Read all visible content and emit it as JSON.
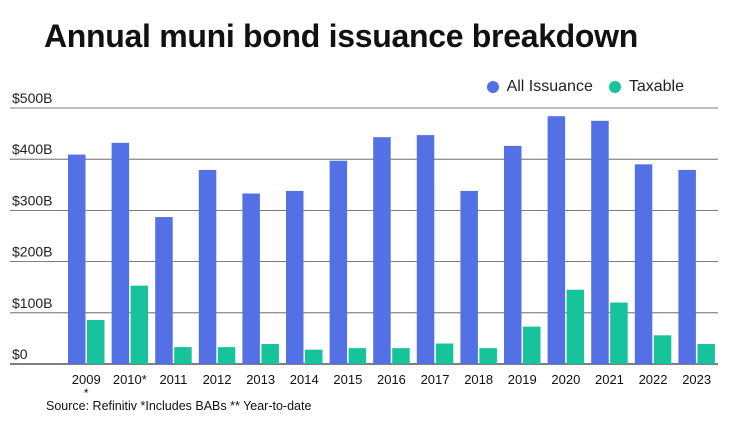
{
  "title": "Annual muni bond issuance breakdown",
  "source": "Source: Refinitiv *Includes BABs ** Year-to-date",
  "colors": {
    "all_issuance": "#5470e5",
    "taxable": "#17c39b",
    "grid": "#555555"
  },
  "chart_data": {
    "type": "bar",
    "categories": [
      "2009",
      "2010*",
      "2011",
      "2012",
      "2013",
      "2014",
      "2015",
      "2016",
      "2017",
      "2018",
      "2019",
      "2020",
      "2021",
      "2022",
      "2023"
    ],
    "category_notes": [
      "*",
      "",
      "",
      "",
      "",
      "",
      "",
      "",
      "",
      "",
      "",
      "",
      "",
      "",
      ""
    ],
    "series": [
      {
        "name": "All Issuance",
        "values": [
          409,
          432,
          287,
          379,
          333,
          338,
          397,
          443,
          447,
          338,
          426,
          484,
          475,
          390,
          379
        ]
      },
      {
        "name": "Taxable",
        "values": [
          86,
          153,
          33,
          33,
          39,
          28,
          31,
          31,
          40,
          31,
          73,
          145,
          120,
          56,
          39
        ]
      }
    ],
    "ylim": [
      0,
      500
    ],
    "yticks": [
      0,
      100,
      200,
      300,
      400,
      500
    ],
    "ytick_labels": [
      "$0",
      "$100B",
      "$200B",
      "$300B",
      "$400B",
      "$500B"
    ],
    "legend_position": "top-right",
    "grid": true
  }
}
